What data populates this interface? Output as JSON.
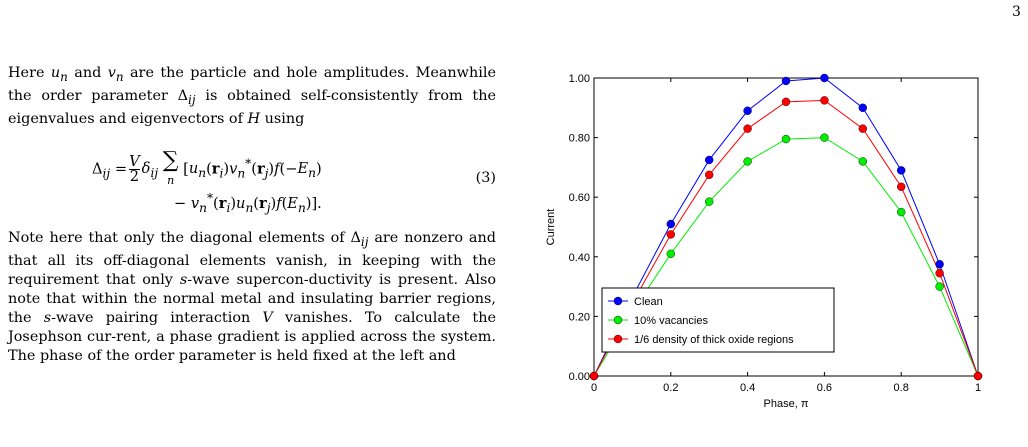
{
  "page_number": "3",
  "text": {
    "para1": "Here u_n and v_n are the particle and hole amplitudes. Meanwhile the order parameter Δ_ij is obtained self-consistently from the eigenvalues and eigenvectors of H using",
    "equation_number": "(3)",
    "para2": "Note here that only the diagonal elements of Δ_ij are nonzero and that all its off-diagonal elements vanish, in keeping with the requirement that only s-wave superconductivity is present. Also note that within the normal metal and insulating barrier regions, the s-wave pairing interaction V vanishes. To calculate the Josephson current, a phase gradient is applied across the system. The phase of the order parameter is held fixed at the left and"
  },
  "chart_data": {
    "type": "line",
    "xlabel": "Phase, π",
    "ylabel": "Current",
    "xlim": [
      0,
      1
    ],
    "ylim": [
      0,
      1
    ],
    "xticks": [
      0,
      0.2,
      0.4,
      0.6,
      0.8,
      1
    ],
    "xtick_labels": [
      "0",
      "0.2",
      "0.4",
      "0.6",
      "0.8",
      "1"
    ],
    "yticks": [
      0,
      0.2,
      0.4,
      0.6,
      0.8,
      1.0
    ],
    "ytick_labels": [
      "0.00",
      "0.20",
      "0.40",
      "0.60",
      "0.80",
      "1.00"
    ],
    "legend_position": "bottom-left",
    "x": [
      0,
      0.1,
      0.2,
      0.3,
      0.4,
      0.5,
      0.6,
      0.7,
      0.8,
      0.9,
      1.0
    ],
    "series": [
      {
        "name": "Clean",
        "color": "#0000ff",
        "values": [
          0,
          0.265,
          0.51,
          0.725,
          0.89,
          0.99,
          1.0,
          0.9,
          0.69,
          0.375,
          0
        ]
      },
      {
        "name": "10% vacancies",
        "color": "#00ee00",
        "values": [
          0,
          0.215,
          0.41,
          0.585,
          0.72,
          0.795,
          0.8,
          0.72,
          0.55,
          0.3,
          0
        ]
      },
      {
        "name": "1/6 density of thick oxide regions",
        "color": "#ff0000",
        "values": [
          0,
          0.245,
          0.475,
          0.675,
          0.83,
          0.92,
          0.925,
          0.83,
          0.635,
          0.345,
          0
        ]
      }
    ]
  }
}
